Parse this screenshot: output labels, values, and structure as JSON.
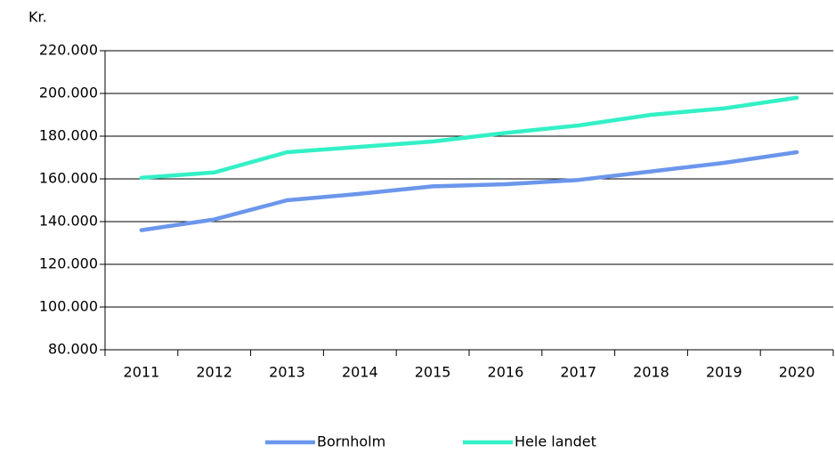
{
  "chart_data": {
    "type": "line",
    "y_label": "Kr.",
    "categories": [
      "2011",
      "2012",
      "2013",
      "2014",
      "2015",
      "2016",
      "2017",
      "2018",
      "2019",
      "2020"
    ],
    "series": [
      {
        "name": "Bornholm",
        "color": "#6b96ec",
        "values": [
          136000,
          141000,
          150000,
          153000,
          156500,
          157500,
          159500,
          163500,
          167500,
          172500
        ]
      },
      {
        "name": "Hele landet",
        "color": "#33f0c6",
        "values": [
          160500,
          163000,
          172500,
          175000,
          177500,
          181500,
          185000,
          190000,
          193000,
          198000
        ]
      }
    ],
    "ylim": [
      80000,
      220000
    ],
    "yticks": [
      {
        "value": 80000,
        "label": "80.000"
      },
      {
        "value": 100000,
        "label": "100.000"
      },
      {
        "value": 120000,
        "label": "120.000"
      },
      {
        "value": 140000,
        "label": "140.000"
      },
      {
        "value": 160000,
        "label": "160.000"
      },
      {
        "value": 180000,
        "label": "180.000"
      },
      {
        "value": 200000,
        "label": "200.000"
      },
      {
        "value": 220000,
        "label": "220.000"
      }
    ],
    "grid": true,
    "legend": "bottom"
  }
}
